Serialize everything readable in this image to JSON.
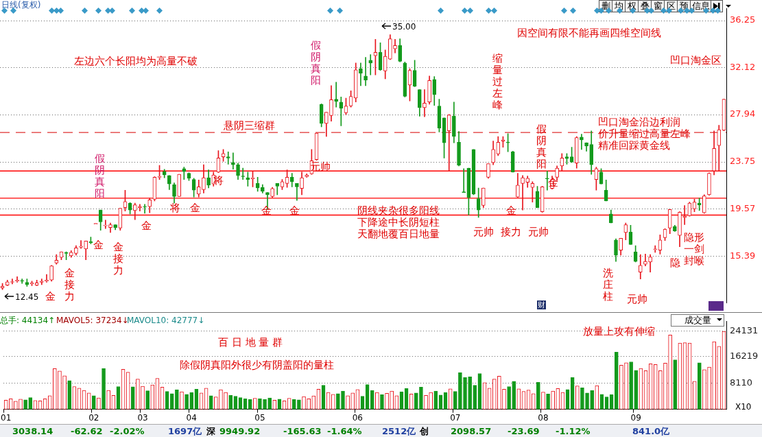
{
  "chart_data": [
    {
      "type": "candlestick",
      "title": "日线(复权)",
      "categories": [
        null,
        null,
        null,
        null,
        null,
        null,
        null,
        null,
        null,
        null,
        null,
        null,
        null,
        null,
        null,
        null,
        null,
        null,
        null,
        null,
        null,
        null,
        null,
        null,
        null,
        null,
        null,
        null,
        null,
        null,
        null,
        null,
        null,
        null,
        null,
        null,
        null,
        null,
        null,
        null,
        null,
        null,
        null,
        null,
        null,
        null,
        null,
        null,
        null,
        null,
        null,
        null,
        null,
        null,
        null,
        null,
        null,
        null,
        null,
        null,
        null,
        null,
        null,
        null,
        null,
        null,
        null,
        null,
        null,
        null,
        null,
        null,
        null,
        null,
        null,
        null,
        null,
        null,
        null,
        null,
        null,
        null,
        null,
        null,
        null,
        null,
        null,
        null,
        null,
        null,
        null,
        null,
        null,
        null,
        null,
        null,
        null,
        null,
        null,
        null,
        null,
        null,
        null,
        null,
        null,
        null,
        null,
        null,
        null,
        null,
        null,
        null,
        null,
        null,
        null,
        null,
        null,
        null,
        null,
        null,
        null,
        null,
        null,
        null,
        null,
        null,
        null,
        null,
        null,
        null,
        null,
        null,
        null,
        null,
        null,
        null,
        null,
        null,
        null,
        null,
        null,
        null,
        null,
        null,
        null,
        null,
        null,
        null
      ],
      "ohlc": [
        [
          12.6,
          13.0,
          12.45,
          12.75
        ],
        [
          12.85,
          13.3,
          12.8,
          13.15
        ],
        [
          13.1,
          13.4,
          12.95,
          13.15
        ],
        [
          13.2,
          13.6,
          13.1,
          13.3
        ],
        [
          13.25,
          13.4,
          13.0,
          13.2
        ],
        [
          13.1,
          13.4,
          12.75,
          12.9
        ],
        [
          12.95,
          13.2,
          12.8,
          13.05
        ],
        [
          12.85,
          13.3,
          12.8,
          13.05
        ],
        [
          13.1,
          13.4,
          12.9,
          13.2
        ],
        [
          13.2,
          13.8,
          13.1,
          13.3
        ],
        [
          13.3,
          14.6,
          13.2,
          14.55
        ],
        [
          14.8,
          15.55,
          14.7,
          15.05
        ],
        [
          15.3,
          15.8,
          15.1,
          15.8
        ],
        [
          15.75,
          15.8,
          15.1,
          15.65
        ],
        [
          15.45,
          15.9,
          15.3,
          15.75
        ],
        [
          15.65,
          16.35,
          15.5,
          16.15
        ],
        [
          16.2,
          16.8,
          16.1,
          16.3
        ],
        [
          16.05,
          16.75,
          15.1,
          16.75
        ],
        [
          16.7,
          17.1,
          16.5,
          16.6
        ],
        [
          18.25,
          18.25,
          18.25,
          18.25
        ],
        [
          19.5,
          19.5,
          17.7,
          18.45
        ],
        [
          18.1,
          18.6,
          17.85,
          18.15
        ],
        [
          17.95,
          18.35,
          17.5,
          18.2
        ],
        [
          18.2,
          18.2,
          17.75,
          17.95
        ],
        [
          17.9,
          19.65,
          17.7,
          19.65
        ],
        [
          19.7,
          21.25,
          19.4,
          20.25
        ],
        [
          20.1,
          20.15,
          19.15,
          19.5
        ],
        [
          19.45,
          20.1,
          18.65,
          19.95
        ],
        [
          19.7,
          20.0,
          19.4,
          19.8
        ],
        [
          19.8,
          20.0,
          19.2,
          19.75
        ],
        [
          19.8,
          20.55,
          19.25,
          20.4
        ],
        [
          20.45,
          22.45,
          20.3,
          22.4
        ],
        [
          22.4,
          23.45,
          22.2,
          22.45
        ],
        [
          22.9,
          23.1,
          22.35,
          22.6
        ],
        [
          22.55,
          22.55,
          21.3,
          21.8
        ],
        [
          21.75,
          21.9,
          20.1,
          20.7
        ],
        [
          20.7,
          22.65,
          20.7,
          22.65
        ],
        [
          23.15,
          23.3,
          22.2,
          22.9
        ],
        [
          22.75,
          22.8,
          22.1,
          22.3
        ],
        [
          22.2,
          22.3,
          20.65,
          21.25
        ],
        [
          20.9,
          22.15,
          20.65,
          21.55
        ],
        [
          21.3,
          23.5,
          21.0,
          22.35
        ],
        [
          22.35,
          23.05,
          21.45,
          21.7
        ],
        [
          21.8,
          22.85,
          21.6,
          22.6
        ],
        [
          22.85,
          24.75,
          22.8,
          24.1
        ],
        [
          24.2,
          24.85,
          23.8,
          24.5
        ],
        [
          24.2,
          24.65,
          23.55,
          24.1
        ],
        [
          23.7,
          24.55,
          23.1,
          23.5
        ],
        [
          23.5,
          23.65,
          22.2,
          22.55
        ],
        [
          22.5,
          23.2,
          22.2,
          22.45
        ],
        [
          22.35,
          22.85,
          21.6,
          22.2
        ],
        [
          22.25,
          22.9,
          21.55,
          22.35
        ],
        [
          21.85,
          22.4,
          21.15,
          21.45
        ],
        [
          21.5,
          21.75,
          21.0,
          21.15
        ],
        [
          21.05,
          21.05,
          19.55,
          20.85
        ],
        [
          20.7,
          21.5,
          20.6,
          21.4
        ],
        [
          21.85,
          21.85,
          20.85,
          21.6
        ],
        [
          21.55,
          22.2,
          21.3,
          22.0
        ],
        [
          21.85,
          23.05,
          21.5,
          22.4
        ],
        [
          22.4,
          22.75,
          21.55,
          22.0
        ],
        [
          21.85,
          21.85,
          20.35,
          21.55
        ],
        [
          21.4,
          22.85,
          20.85,
          22.35
        ],
        [
          22.45,
          22.7,
          22.4,
          22.6
        ],
        [
          22.7,
          24.85,
          22.65,
          23.85
        ],
        [
          23.95,
          26.3,
          23.9,
          26.3
        ],
        [
          28.85,
          28.9,
          26.85,
          27.15
        ],
        [
          27.15,
          28.15,
          26.0,
          28.15
        ],
        [
          27.85,
          30.5,
          27.35,
          29.25
        ],
        [
          29.3,
          30.8,
          28.6,
          29.1
        ],
        [
          29.05,
          29.5,
          26.95,
          28.5
        ],
        [
          28.1,
          29.4,
          27.95,
          28.7
        ],
        [
          28.7,
          30.05,
          28.6,
          29.55
        ],
        [
          29.4,
          32.5,
          29.05,
          31.9
        ],
        [
          32.0,
          32.5,
          30.5,
          31.6
        ],
        [
          31.35,
          33.0,
          30.5,
          31.0
        ],
        [
          32.75,
          33.25,
          31.45,
          32.5
        ],
        [
          33.15,
          34.6,
          31.45,
          33.45
        ],
        [
          33.45,
          34.3,
          31.85,
          31.9
        ],
        [
          31.8,
          33.65,
          31.1,
          33.1
        ],
        [
          32.85,
          35.0,
          32.8,
          34.65
        ],
        [
          33.75,
          34.6,
          33.4,
          34.05
        ],
        [
          34.05,
          34.65,
          32.6,
          32.65
        ],
        [
          32.5,
          32.6,
          29.5,
          29.55
        ],
        [
          30.55,
          32.0,
          29.15,
          31.85
        ],
        [
          31.85,
          32.75,
          30.4,
          30.45
        ],
        [
          30.15,
          30.15,
          27.8,
          28.55
        ],
        [
          28.55,
          30.15,
          27.75,
          28.95
        ],
        [
          29.05,
          31.35,
          28.85,
          30.95
        ],
        [
          31.05,
          31.3,
          28.75,
          29.7
        ],
        [
          28.7,
          29.3,
          26.4,
          26.75
        ],
        [
          27.65,
          27.65,
          24.1,
          25.45
        ],
        [
          26.5,
          27.95,
          22.95,
          27.9
        ],
        [
          27.8,
          29.05,
          25.45,
          26.0
        ],
        [
          25.5,
          26.45,
          23.4,
          23.45
        ],
        [
          21.1,
          23.15,
          21.05,
          21.05
        ],
        [
          23.2,
          23.2,
          19.05,
          20.6
        ],
        [
          24.85,
          24.85,
          20.85,
          20.9
        ],
        [
          20.5,
          21.45,
          18.85,
          19.5
        ],
        [
          19.9,
          21.45,
          19.7,
          21.45
        ],
        [
          22.4,
          23.6,
          22.3,
          23.6
        ],
        [
          23.7,
          25.6,
          23.5,
          24.85
        ],
        [
          24.45,
          26.0,
          24.3,
          25.5
        ],
        [
          25.6,
          26.0,
          25.05,
          25.7
        ],
        [
          25.5,
          26.25,
          24.65,
          25.45
        ],
        [
          24.65,
          24.7,
          22.85,
          22.85
        ],
        [
          20.65,
          22.75,
          20.6,
          21.7
        ],
        [
          21.85,
          22.55,
          19.5,
          22.35
        ],
        [
          21.95,
          22.5,
          21.5,
          22.3
        ],
        [
          21.5,
          22.0,
          20.2,
          21.85
        ],
        [
          21.15,
          21.6,
          19.7,
          19.7
        ],
        [
          19.35,
          21.6,
          19.3,
          21.55
        ],
        [
          22.3,
          22.95,
          21.25,
          22.25
        ],
        [
          21.4,
          22.5,
          21.35,
          22.2
        ],
        [
          22.4,
          23.4,
          22.1,
          23.2
        ],
        [
          23.4,
          24.5,
          22.95,
          24.1
        ],
        [
          24.2,
          24.5,
          23.55,
          24.05
        ],
        [
          24.2,
          25.05,
          23.7,
          23.75
        ],
        [
          23.65,
          26.0,
          23.2,
          25.9
        ],
        [
          25.95,
          26.2,
          24.85,
          25.7
        ],
        [
          25.45,
          25.45,
          24.7,
          25.15
        ],
        [
          25.3,
          26.5,
          22.65,
          23.5
        ],
        [
          22.2,
          23.3,
          21.25,
          23.15
        ],
        [
          22.85,
          23.15,
          21.8,
          21.8
        ],
        [
          21.25,
          22.15,
          20.3,
          20.3
        ],
        [
          19.15,
          19.5,
          18.35,
          18.35
        ],
        [
          16.85,
          16.95,
          14.95,
          15.5
        ],
        [
          15.95,
          17.0,
          15.5,
          17.0
        ],
        [
          17.5,
          18.35,
          16.85,
          18.2
        ],
        [
          17.55,
          18.15,
          16.45,
          16.45
        ],
        [
          15.8,
          16.35,
          14.9,
          14.95
        ],
        [
          14.0,
          15.55,
          13.4,
          14.6
        ],
        [
          14.7,
          15.6,
          14.55,
          14.95
        ],
        [
          14.9,
          15.55,
          14.0,
          15.35
        ],
        [
          16.0,
          16.35,
          15.75,
          16.05
        ],
        [
          15.95,
          17.3,
          15.6,
          16.85
        ],
        [
          17.05,
          17.85,
          16.8,
          17.8
        ],
        [
          17.9,
          19.55,
          17.4,
          19.55
        ],
        [
          18.05,
          18.15,
          17.6,
          17.65
        ],
        [
          17.25,
          19.35,
          16.25,
          19.3
        ],
        [
          18.85,
          19.9,
          18.2,
          18.95
        ],
        [
          19.0,
          20.2,
          18.95,
          20.1
        ],
        [
          19.6,
          20.45,
          19.35,
          20.2
        ],
        [
          20.1,
          20.55,
          19.45,
          19.95
        ],
        [
          19.25,
          20.85,
          19.2,
          20.75
        ],
        [
          20.85,
          22.8,
          20.8,
          22.75
        ],
        [
          22.95,
          26.5,
          22.6,
          24.95
        ],
        [
          25.2,
          27.0,
          22.95,
          26.6
        ],
        [
          26.55,
          29.3,
          26.5,
          29.3
        ]
      ],
      "colors": [
        "#e8141c",
        "#e8141c",
        "#e8141c",
        "#e8141c",
        "#139a1c",
        "#139a1c",
        "#e8141c",
        "#e8141c",
        "#e8141c",
        "#e8141c",
        "#e8141c",
        "#e8141c",
        "#e8141c",
        "#139a1c",
        "#e8141c",
        "#e8141c",
        "#e8141c",
        "#e8141c",
        "#139a1c",
        "#e8141c",
        "#139a1c",
        "#e8141c",
        "#e8141c",
        "#139a1c",
        "#e8141c",
        "#e8141c",
        "#139a1c",
        "#e8141c",
        "#e8141c",
        "#139a1c",
        "#e8141c",
        "#e8141c",
        "#e8141c",
        "#139a1c",
        "#139a1c",
        "#139a1c",
        "#e8141c",
        "#139a1c",
        "#139a1c",
        "#139a1c",
        "#e8141c",
        "#e8141c",
        "#139a1c",
        "#e8141c",
        "#e8141c",
        "#e8141c",
        "#139a1c",
        "#139a1c",
        "#139a1c",
        "#139a1c",
        "#139a1c",
        "#e8141c",
        "#139a1c",
        "#139a1c",
        "#139a1c",
        "#e8141c",
        "#139a1c",
        "#e8141c",
        "#e8141c",
        "#139a1c",
        "#139a1c",
        "#e8141c",
        "#e8141c",
        "#e8141c",
        "#e8141c",
        "#139a1c",
        "#e8141c",
        "#e8141c",
        "#139a1c",
        "#139a1c",
        "#e8141c",
        "#e8141c",
        "#e8141c",
        "#139a1c",
        "#139a1c",
        "#139a1c",
        "#e8141c",
        "#139a1c",
        "#e8141c",
        "#e8141c",
        "#e8141c",
        "#139a1c",
        "#139a1c",
        "#e8141c",
        "#139a1c",
        "#139a1c",
        "#e8141c",
        "#e8141c",
        "#139a1c",
        "#139a1c",
        "#139a1c",
        "#e8141c",
        "#139a1c",
        "#139a1c",
        "#139a1c",
        "#139a1c",
        "#139a1c",
        "#139a1c",
        "#e8141c",
        "#e8141c",
        "#e8141c",
        "#e8141c",
        "#e8141c",
        "#139a1c",
        "#139a1c",
        "#e8141c",
        "#e8141c",
        "#e8141c",
        "#e8141c",
        "#139a1c",
        "#e8141c",
        "#139a1c",
        "#e8141c",
        "#e8141c",
        "#e8141c",
        "#139a1c",
        "#139a1c",
        "#e8141c",
        "#139a1c",
        "#139a1c",
        "#139a1c",
        "#e8141c",
        "#139a1c",
        "#139a1c",
        "#139a1c",
        "#139a1c",
        "#e8141c",
        "#e8141c",
        "#139a1c",
        "#139a1c",
        "#e8141c",
        "#e8141c",
        "#e8141c",
        "#e8141c",
        "#e8141c",
        "#e8141c",
        "#e8141c",
        "#139a1c",
        "#e8141c",
        "#e8141c",
        "#e8141c",
        "#e8141c",
        "#139a1c",
        "#e8141c",
        "#e8141c",
        "#e8141c",
        "#e8141c",
        "#e8141c"
      ],
      "ylim": [
        11.3,
        37.3
      ],
      "yticks": [
        15.39,
        19.57,
        23.75,
        27.94,
        32.12,
        36.25
      ],
      "grid": "y",
      "tick_labels": "y",
      "ref_lines": [
        {
          "axis": "y",
          "value": 22.95,
          "color": "#ff0000"
        },
        {
          "axis": "y",
          "value": 20.55,
          "color": "#ff0000"
        },
        {
          "axis": "y",
          "value": 19.05,
          "color": "#ff0000"
        },
        {
          "axis": "y",
          "value": 26.35,
          "color": "#e03030",
          "line_style": "dashed"
        }
      ],
      "annotations": [
        "左边六个长阳均为高量不破",
        "假阴真阳",
        "金",
        "金接力",
        "金",
        "金接力",
        "金",
        "将",
        "金",
        "悬阴三缩群",
        "将",
        "金",
        "金",
        "元帅",
        "假阴真阳",
        "阴线夹杂很多阳线",
        "下降途中长阴短柱",
        "天翻地覆百日地量",
        "缩量过左峰",
        "因空间有限不能再画四维空间线",
        "凹口淘金区",
        "凹口淘金沿边利润",
        "价升量缩过高量左峰",
        "精准回踩黄金线",
        "假阴真阳",
        "金",
        "金",
        "元帅",
        "接力",
        "元帅",
        "洗庄柱",
        "元帅",
        "隐",
        "隐形一剑封喉",
        "35.00",
        "12.45",
        "删",
        "均",
        "权",
        "叠",
        "窗",
        "区",
        "预",
        "信息",
        "财"
      ]
    },
    {
      "type": "bar",
      "categories": [
        "01",
        null,
        null,
        null,
        null,
        null,
        null,
        null,
        null,
        null,
        null,
        null,
        null,
        null,
        null,
        null,
        null,
        null,
        "02",
        null,
        null,
        null,
        null,
        null,
        null,
        null,
        null,
        null,
        "03",
        null,
        null,
        null,
        null,
        null,
        null,
        null,
        null,
        null,
        "04",
        null,
        null,
        null,
        null,
        null,
        null,
        null,
        null,
        null,
        null,
        null,
        null,
        null,
        "05",
        null,
        null,
        null,
        null,
        null,
        null,
        null,
        null,
        null,
        null,
        null,
        null,
        null,
        null,
        null,
        null,
        null,
        null,
        null,
        "06",
        null,
        null,
        null,
        null,
        null,
        null,
        null,
        null,
        null,
        null,
        null,
        null,
        null,
        null,
        null,
        null,
        null,
        null,
        null,
        "07",
        null,
        null,
        null,
        null,
        null,
        null,
        null,
        null,
        null,
        null,
        null,
        null,
        null,
        null,
        null,
        null,
        null,
        "08",
        null,
        null,
        null,
        null,
        null,
        null,
        null,
        null,
        null,
        null,
        null,
        null,
        null,
        null,
        null,
        null,
        null,
        null,
        "09",
        null,
        null,
        null,
        null,
        null,
        null,
        null,
        null,
        null,
        null,
        null,
        null,
        null,
        null,
        null,
        null,
        null,
        null
      ],
      "values": [
        2800,
        3200,
        2500,
        3100,
        2900,
        3600,
        2700,
        2600,
        3200,
        4200,
        12500,
        11800,
        10300,
        8800,
        7000,
        6500,
        5800,
        5000,
        4200,
        3500,
        12600,
        5800,
        4300,
        7000,
        12300,
        11400,
        6900,
        9300,
        7100,
        5700,
        7500,
        9500,
        6800,
        5500,
        4800,
        6000,
        5400,
        4600,
        5200,
        6200,
        5000,
        6500,
        4200,
        3800,
        6000,
        5200,
        4300,
        4000,
        3600,
        3200,
        3000,
        3400,
        3300,
        3000,
        3500,
        2800,
        3100,
        2600,
        3400,
        3000,
        2900,
        3900,
        3200,
        4100,
        6200,
        7400,
        5200,
        4600,
        4800,
        5600,
        4200,
        5000,
        6100,
        4000,
        7600,
        5800,
        5200,
        4500,
        4900,
        5600,
        4200,
        5400,
        6400,
        4700,
        5000,
        6800,
        4300,
        5200,
        5600,
        4400,
        5200,
        6300,
        5500,
        11300,
        9800,
        10000,
        7400,
        11000,
        8200,
        6500,
        9300,
        10200,
        6200,
        7000,
        8600,
        6300,
        5500,
        5900,
        4800,
        8300,
        5300,
        4700,
        5600,
        6400,
        5200,
        6100,
        9800,
        7200,
        6600,
        5000,
        5800,
        7300,
        4600,
        3800,
        4500,
        17600,
        13600,
        14300,
        14600,
        12000,
        12600,
        11900,
        14000,
        13800,
        11900,
        14200,
        22900,
        15200,
        20400,
        20500,
        20400,
        8600,
        14300,
        12200,
        13000,
        20800,
        19400,
        24000
      ],
      "colors": [
        "#e8141c",
        "#e8141c",
        "#e8141c",
        "#e8141c",
        "#139a1c",
        "#139a1c",
        "#e8141c",
        "#e8141c",
        "#e8141c",
        "#e8141c",
        "#e8141c",
        "#e8141c",
        "#e8141c",
        "#139a1c",
        "#e8141c",
        "#e8141c",
        "#e8141c",
        "#e8141c",
        "#139a1c",
        "#e8141c",
        "#139a1c",
        "#e8141c",
        "#e8141c",
        "#139a1c",
        "#e8141c",
        "#e8141c",
        "#139a1c",
        "#e8141c",
        "#e8141c",
        "#139a1c",
        "#e8141c",
        "#e8141c",
        "#e8141c",
        "#139a1c",
        "#139a1c",
        "#139a1c",
        "#e8141c",
        "#139a1c",
        "#139a1c",
        "#139a1c",
        "#e8141c",
        "#e8141c",
        "#139a1c",
        "#e8141c",
        "#e8141c",
        "#e8141c",
        "#139a1c",
        "#139a1c",
        "#139a1c",
        "#139a1c",
        "#139a1c",
        "#e8141c",
        "#139a1c",
        "#139a1c",
        "#139a1c",
        "#e8141c",
        "#139a1c",
        "#e8141c",
        "#e8141c",
        "#139a1c",
        "#139a1c",
        "#e8141c",
        "#e8141c",
        "#e8141c",
        "#e8141c",
        "#139a1c",
        "#e8141c",
        "#e8141c",
        "#139a1c",
        "#139a1c",
        "#e8141c",
        "#e8141c",
        "#e8141c",
        "#139a1c",
        "#139a1c",
        "#139a1c",
        "#e8141c",
        "#139a1c",
        "#e8141c",
        "#e8141c",
        "#e8141c",
        "#139a1c",
        "#139a1c",
        "#e8141c",
        "#139a1c",
        "#139a1c",
        "#e8141c",
        "#e8141c",
        "#139a1c",
        "#139a1c",
        "#139a1c",
        "#e8141c",
        "#139a1c",
        "#139a1c",
        "#139a1c",
        "#139a1c",
        "#139a1c",
        "#139a1c",
        "#e8141c",
        "#e8141c",
        "#e8141c",
        "#e8141c",
        "#e8141c",
        "#139a1c",
        "#139a1c",
        "#e8141c",
        "#e8141c",
        "#e8141c",
        "#e8141c",
        "#139a1c",
        "#e8141c",
        "#139a1c",
        "#e8141c",
        "#e8141c",
        "#e8141c",
        "#139a1c",
        "#139a1c",
        "#e8141c",
        "#139a1c",
        "#139a1c",
        "#139a1c",
        "#e8141c",
        "#139a1c",
        "#139a1c",
        "#139a1c",
        "#139a1c",
        "#e8141c",
        "#e8141c",
        "#139a1c",
        "#139a1c",
        "#e8141c",
        "#e8141c",
        "#e8141c",
        "#e8141c",
        "#e8141c",
        "#e8141c",
        "#e8141c",
        "#139a1c",
        "#e8141c",
        "#e8141c",
        "#e8141c",
        "#e8141c",
        "#139a1c",
        "#e8141c",
        "#e8141c",
        "#e8141c",
        "#e8141c",
        "#e8141c"
      ],
      "ylim": [
        0,
        27000
      ],
      "yticks": [
        8110,
        16219,
        24131
      ],
      "grid": "y",
      "annotations": [
        "总手: 44134↑",
        "MAVOL5: 37234↓",
        "MAVOL10: 42777↓",
        "百 日 地 量 群",
        "除假阴真阳外很少有阴盖阳的量柱",
        "放量上攻有伸缩",
        "成交量",
        "X10",
        "3038.14",
        "-62.62",
        "-2.02%",
        "1697亿",
        "深",
        "9949.92",
        "-165.63",
        "-1.64%",
        "2512亿",
        "创",
        "2098.57",
        "-23.69",
        "-1.12%",
        "841.0亿"
      ]
    }
  ]
}
